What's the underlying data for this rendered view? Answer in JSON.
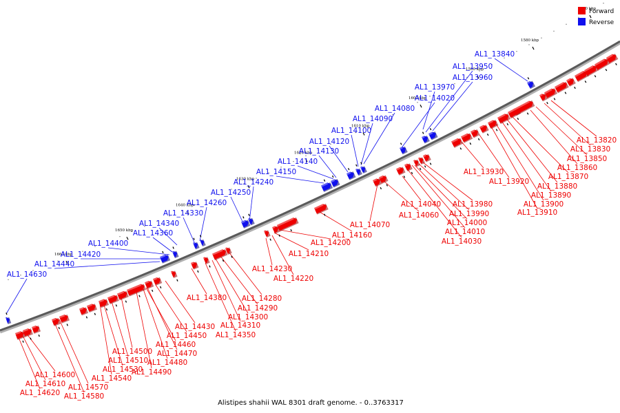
{
  "caption": "Alistipes shahii WAL 8301 draft genome. - 0..3763317",
  "legend": [
    {
      "label": "Forward",
      "color": "#ee0000"
    },
    {
      "label": "Reverse",
      "color": "#1010ee"
    }
  ],
  "ticks": [
    "1570 kbp",
    "1580 kbp",
    "1590 kbp",
    "1600 kbp",
    "1610 kbp",
    "1620 kbp",
    "1630 kbp",
    "1640 kbp",
    "1650 kbp",
    "1660 kbp"
  ],
  "reverse_labels": [
    "AL1_13840",
    "AL1_13950",
    "AL1_13960",
    "AL1_13970",
    "AL1_14020",
    "AL1_14080",
    "AL1_14090",
    "AL1_14100",
    "AL1_14120",
    "AL1_14130",
    "AL1_14140",
    "AL1_14150",
    "AL1_14240",
    "AL1_14250",
    "AL1_14260",
    "AL1_14330",
    "AL1_14340",
    "AL1_14360",
    "AL1_14400",
    "AL1_14420",
    "AL1_14440",
    "AL1_14630"
  ],
  "forward_labels": [
    "AL1_13820",
    "AL1_13830",
    "AL1_13850",
    "AL1_13860",
    "AL1_13870",
    "AL1_13880",
    "AL1_13890",
    "AL1_13900",
    "AL1_13910",
    "AL1_13920",
    "AL1_13930",
    "AL1_13980",
    "AL1_13990",
    "AL1_14000",
    "AL1_14010",
    "AL1_14030",
    "AL1_14040",
    "AL1_14060",
    "AL1_14070",
    "AL1_14160",
    "AL1_14200",
    "AL1_14210",
    "AL1_14220",
    "AL1_14230",
    "AL1_14280",
    "AL1_14290",
    "AL1_14300",
    "AL1_14310",
    "AL1_14350",
    "AL1_14380",
    "AL1_14430",
    "AL1_14450",
    "AL1_14460",
    "AL1_14470",
    "AL1_14480",
    "AL1_14490",
    "AL1_14500",
    "AL1_14510",
    "AL1_14530",
    "AL1_14540",
    "AL1_14570",
    "AL1_14580",
    "AL1_14600",
    "AL1_14610",
    "AL1_14620"
  ]
}
